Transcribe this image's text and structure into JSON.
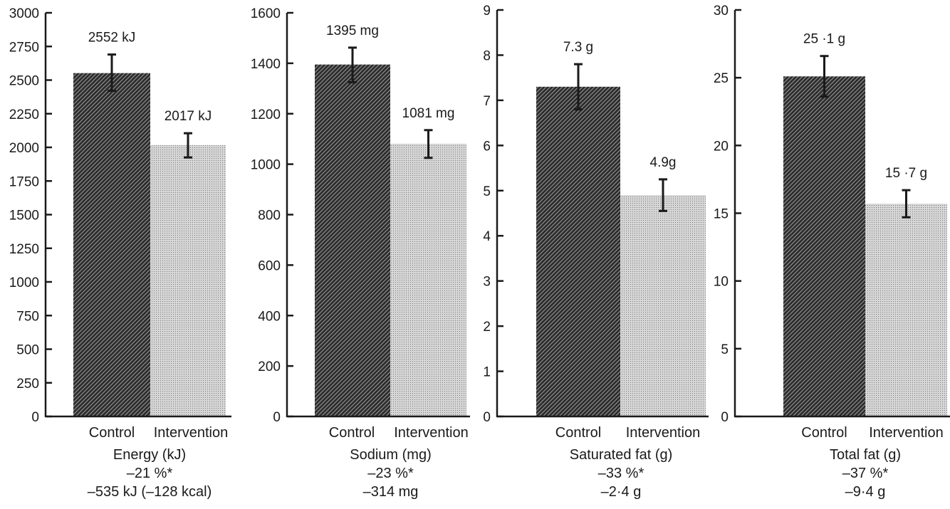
{
  "chart_data": [
    {
      "type": "bar",
      "title": "Energy (kJ)",
      "categories": [
        "Control",
        "Intervention"
      ],
      "values": [
        2552,
        2017
      ],
      "errors": [
        [
          2420,
          2690
        ],
        [
          1925,
          2105
        ]
      ],
      "data_labels": [
        "2552 kJ",
        "2017 kJ"
      ],
      "ylim": [
        0,
        3000
      ],
      "yticks": [
        0,
        250,
        500,
        750,
        1000,
        1250,
        1500,
        1750,
        2000,
        2250,
        2500,
        2750,
        3000
      ],
      "footer": [
        "Energy (kJ)",
        "–21 %*",
        "–535 kJ (–128 kcal)"
      ]
    },
    {
      "type": "bar",
      "title": "Sodium (mg)",
      "categories": [
        "Control",
        "Intervention"
      ],
      "values": [
        1395,
        1081
      ],
      "errors": [
        [
          1325,
          1462
        ],
        [
          1025,
          1135
        ]
      ],
      "data_labels": [
        "1395 mg",
        "1081 mg"
      ],
      "ylim": [
        0,
        1600
      ],
      "yticks": [
        0,
        200,
        400,
        600,
        800,
        1000,
        1200,
        1400,
        1600
      ],
      "footer": [
        "Sodium (mg)",
        "–23 %*",
        "–314 mg"
      ]
    },
    {
      "type": "bar",
      "title": "Saturated fat (g)",
      "categories": [
        "Control",
        "Intervention"
      ],
      "values": [
        7.3,
        4.9
      ],
      "errors": [
        [
          6.8,
          7.8
        ],
        [
          4.55,
          5.25
        ]
      ],
      "data_labels": [
        "7.3 g",
        "4.9g"
      ],
      "ylim": [
        0,
        9
      ],
      "yticks": [
        0,
        1,
        2,
        3,
        4,
        5,
        6,
        7,
        8,
        9
      ],
      "footer": [
        "Saturated fat (g)",
        "–33 %*",
        "–2·4 g"
      ]
    },
    {
      "type": "bar",
      "title": "Total fat (g)",
      "categories": [
        "Control",
        "Intervention"
      ],
      "values": [
        25.1,
        15.7
      ],
      "errors": [
        [
          23.6,
          26.6
        ],
        [
          14.7,
          16.7
        ]
      ],
      "data_labels": [
        "25 ·1 g",
        "15 ·7 g"
      ],
      "ylim": [
        0,
        30
      ],
      "yticks": [
        0,
        5,
        10,
        15,
        20,
        25,
        30
      ],
      "footer": [
        "Total fat (g)",
        "–37 %*",
        "–9·4 g"
      ]
    }
  ],
  "colors": {
    "control": "#2a2a2a",
    "intervention": "#bdbdbd",
    "axis": "#1a1a1a"
  }
}
